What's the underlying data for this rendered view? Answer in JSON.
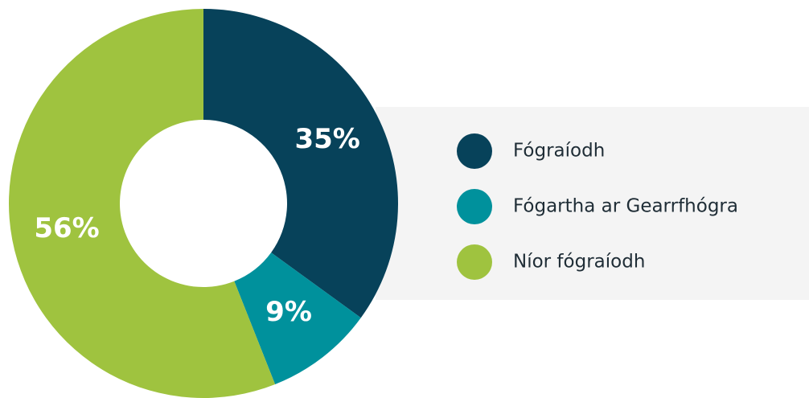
{
  "chart_data": {
    "type": "donut",
    "categories": [
      "Fógraíodh",
      "Fógartha ar Gearrfhógra",
      "Níor fógraíodh"
    ],
    "values": [
      35,
      9,
      56
    ],
    "value_labels": [
      "35%",
      "9%",
      "56%"
    ],
    "colors": [
      "#07425a",
      "#00919c",
      "#9fc33f"
    ],
    "legend": "right"
  }
}
